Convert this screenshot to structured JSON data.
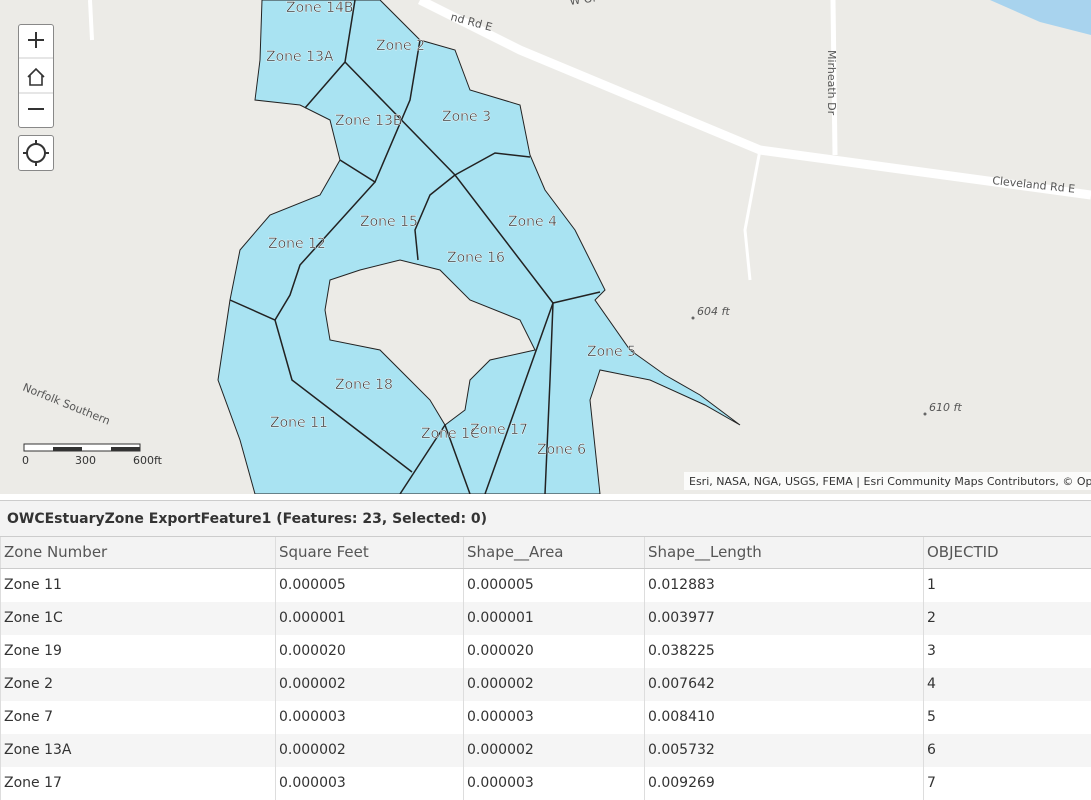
{
  "map": {
    "zone_labels": [
      "Zone 14B",
      "Zone 13A",
      "Zone 2",
      "Zone 13B",
      "Zone 3",
      "Zone 15",
      "Zone 12",
      "Zone 4",
      "Zone 16",
      "Zone 5",
      "Zone 18",
      "Zone 11",
      "Zone 1C",
      "Zone 17",
      "Zone 6"
    ],
    "road_labels": [
      "nd Rd E",
      "W Ol",
      "Mirheath Dr",
      "Cleveland Rd E",
      "Norfolk Southern"
    ],
    "elevations": [
      "604 ft",
      "610 ft"
    ],
    "scale": [
      "0",
      "300",
      "600ft"
    ],
    "attribution": "Esri, NASA, NGA, USGS, FEMA | Esri Community Maps Contributors, © OpenSt"
  },
  "table": {
    "title": "OWCEstuaryZone ExportFeature1 (Features: 23, Selected: 0)",
    "columns": [
      "Zone Number",
      "Square Feet",
      "Shape__Area",
      "Shape__Length",
      "OBJECTID"
    ],
    "rows": [
      [
        "Zone 11",
        "0.000005",
        "0.000005",
        "0.012883",
        "1"
      ],
      [
        "Zone 1C",
        "0.000001",
        "0.000001",
        "0.003977",
        "2"
      ],
      [
        "Zone 19",
        "0.000020",
        "0.000020",
        "0.038225",
        "3"
      ],
      [
        "Zone 2",
        "0.000002",
        "0.000002",
        "0.007642",
        "4"
      ],
      [
        "Zone 7",
        "0.000003",
        "0.000003",
        "0.008410",
        "5"
      ],
      [
        "Zone 13A",
        "0.000002",
        "0.000002",
        "0.005732",
        "6"
      ],
      [
        "Zone 17",
        "0.000003",
        "0.000003",
        "0.009269",
        "7"
      ]
    ]
  }
}
